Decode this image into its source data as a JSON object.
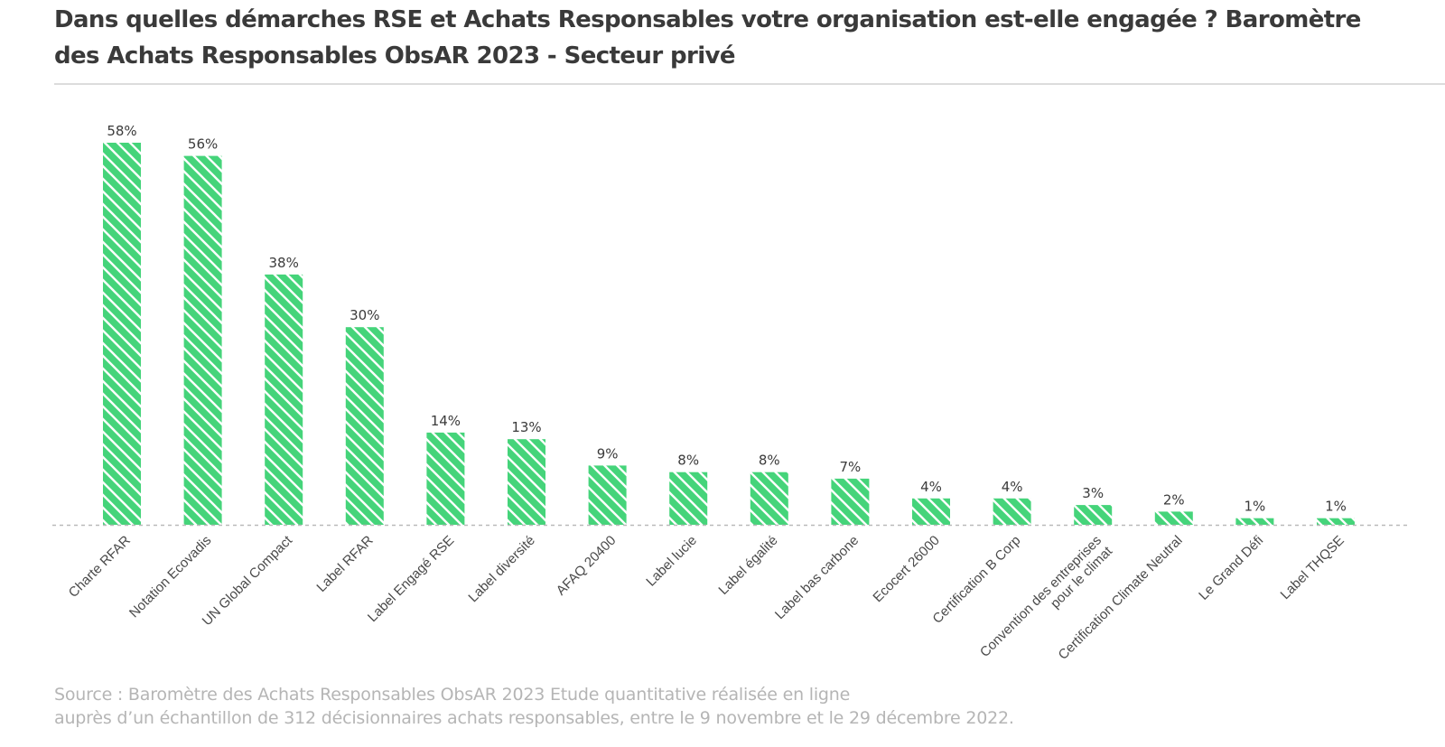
{
  "header": {
    "title": "Dans quelles démarches RSE et Achats Responsables votre organisation est-elle engagée ? Baromètre des Achats Responsables ObsAR 2023 - Secteur privé"
  },
  "footer": {
    "source_line1": "Source : Baromètre des Achats Responsables ObsAR 2023 Etude quantitative réalisée en ligne",
    "source_line2": "auprès d’un échantillon de 312 décisionnaires achats responsables, entre le 9 novembre et le 29 décembre 2022."
  },
  "chart_data": {
    "type": "bar",
    "title": "Dans quelles démarches RSE et Achats Responsables votre organisation est-elle engagée ? Baromètre des Achats Responsables ObsAR 2023 - Secteur privé",
    "categories": [
      "Charte RFAR",
      "Notation Ecovadis",
      "UN Global Compact",
      "Label RFAR",
      "Label Engagé RSE",
      "Label diversité",
      "AFAQ 20400",
      "Label lucie",
      "Label égalité",
      "Label bas carbone",
      "Ecocert 26000",
      "Certification B Corp",
      "Convention des entreprises\npour le climat",
      "Certification Climate Neutral",
      "Le Grand Défi",
      "Label THQSE"
    ],
    "values": [
      58,
      56,
      38,
      30,
      14,
      13,
      9,
      8,
      8,
      7,
      4,
      4,
      3,
      2,
      1,
      1
    ],
    "value_labels": [
      "58%",
      "56%",
      "38%",
      "30%",
      "14%",
      "13%",
      "9%",
      "8%",
      "8%",
      "7%",
      "4%",
      "4%",
      "3%",
      "2%",
      "1%",
      "1%"
    ],
    "unit": "%",
    "ylim": [
      0,
      60
    ],
    "xlabel": "",
    "ylabel": "",
    "grid": false,
    "legend": "none",
    "colors": {
      "bar": "#45d47a",
      "hatch": "#ffffff",
      "baseline": "#b9b9b9",
      "label": "#3b3b3b"
    }
  }
}
